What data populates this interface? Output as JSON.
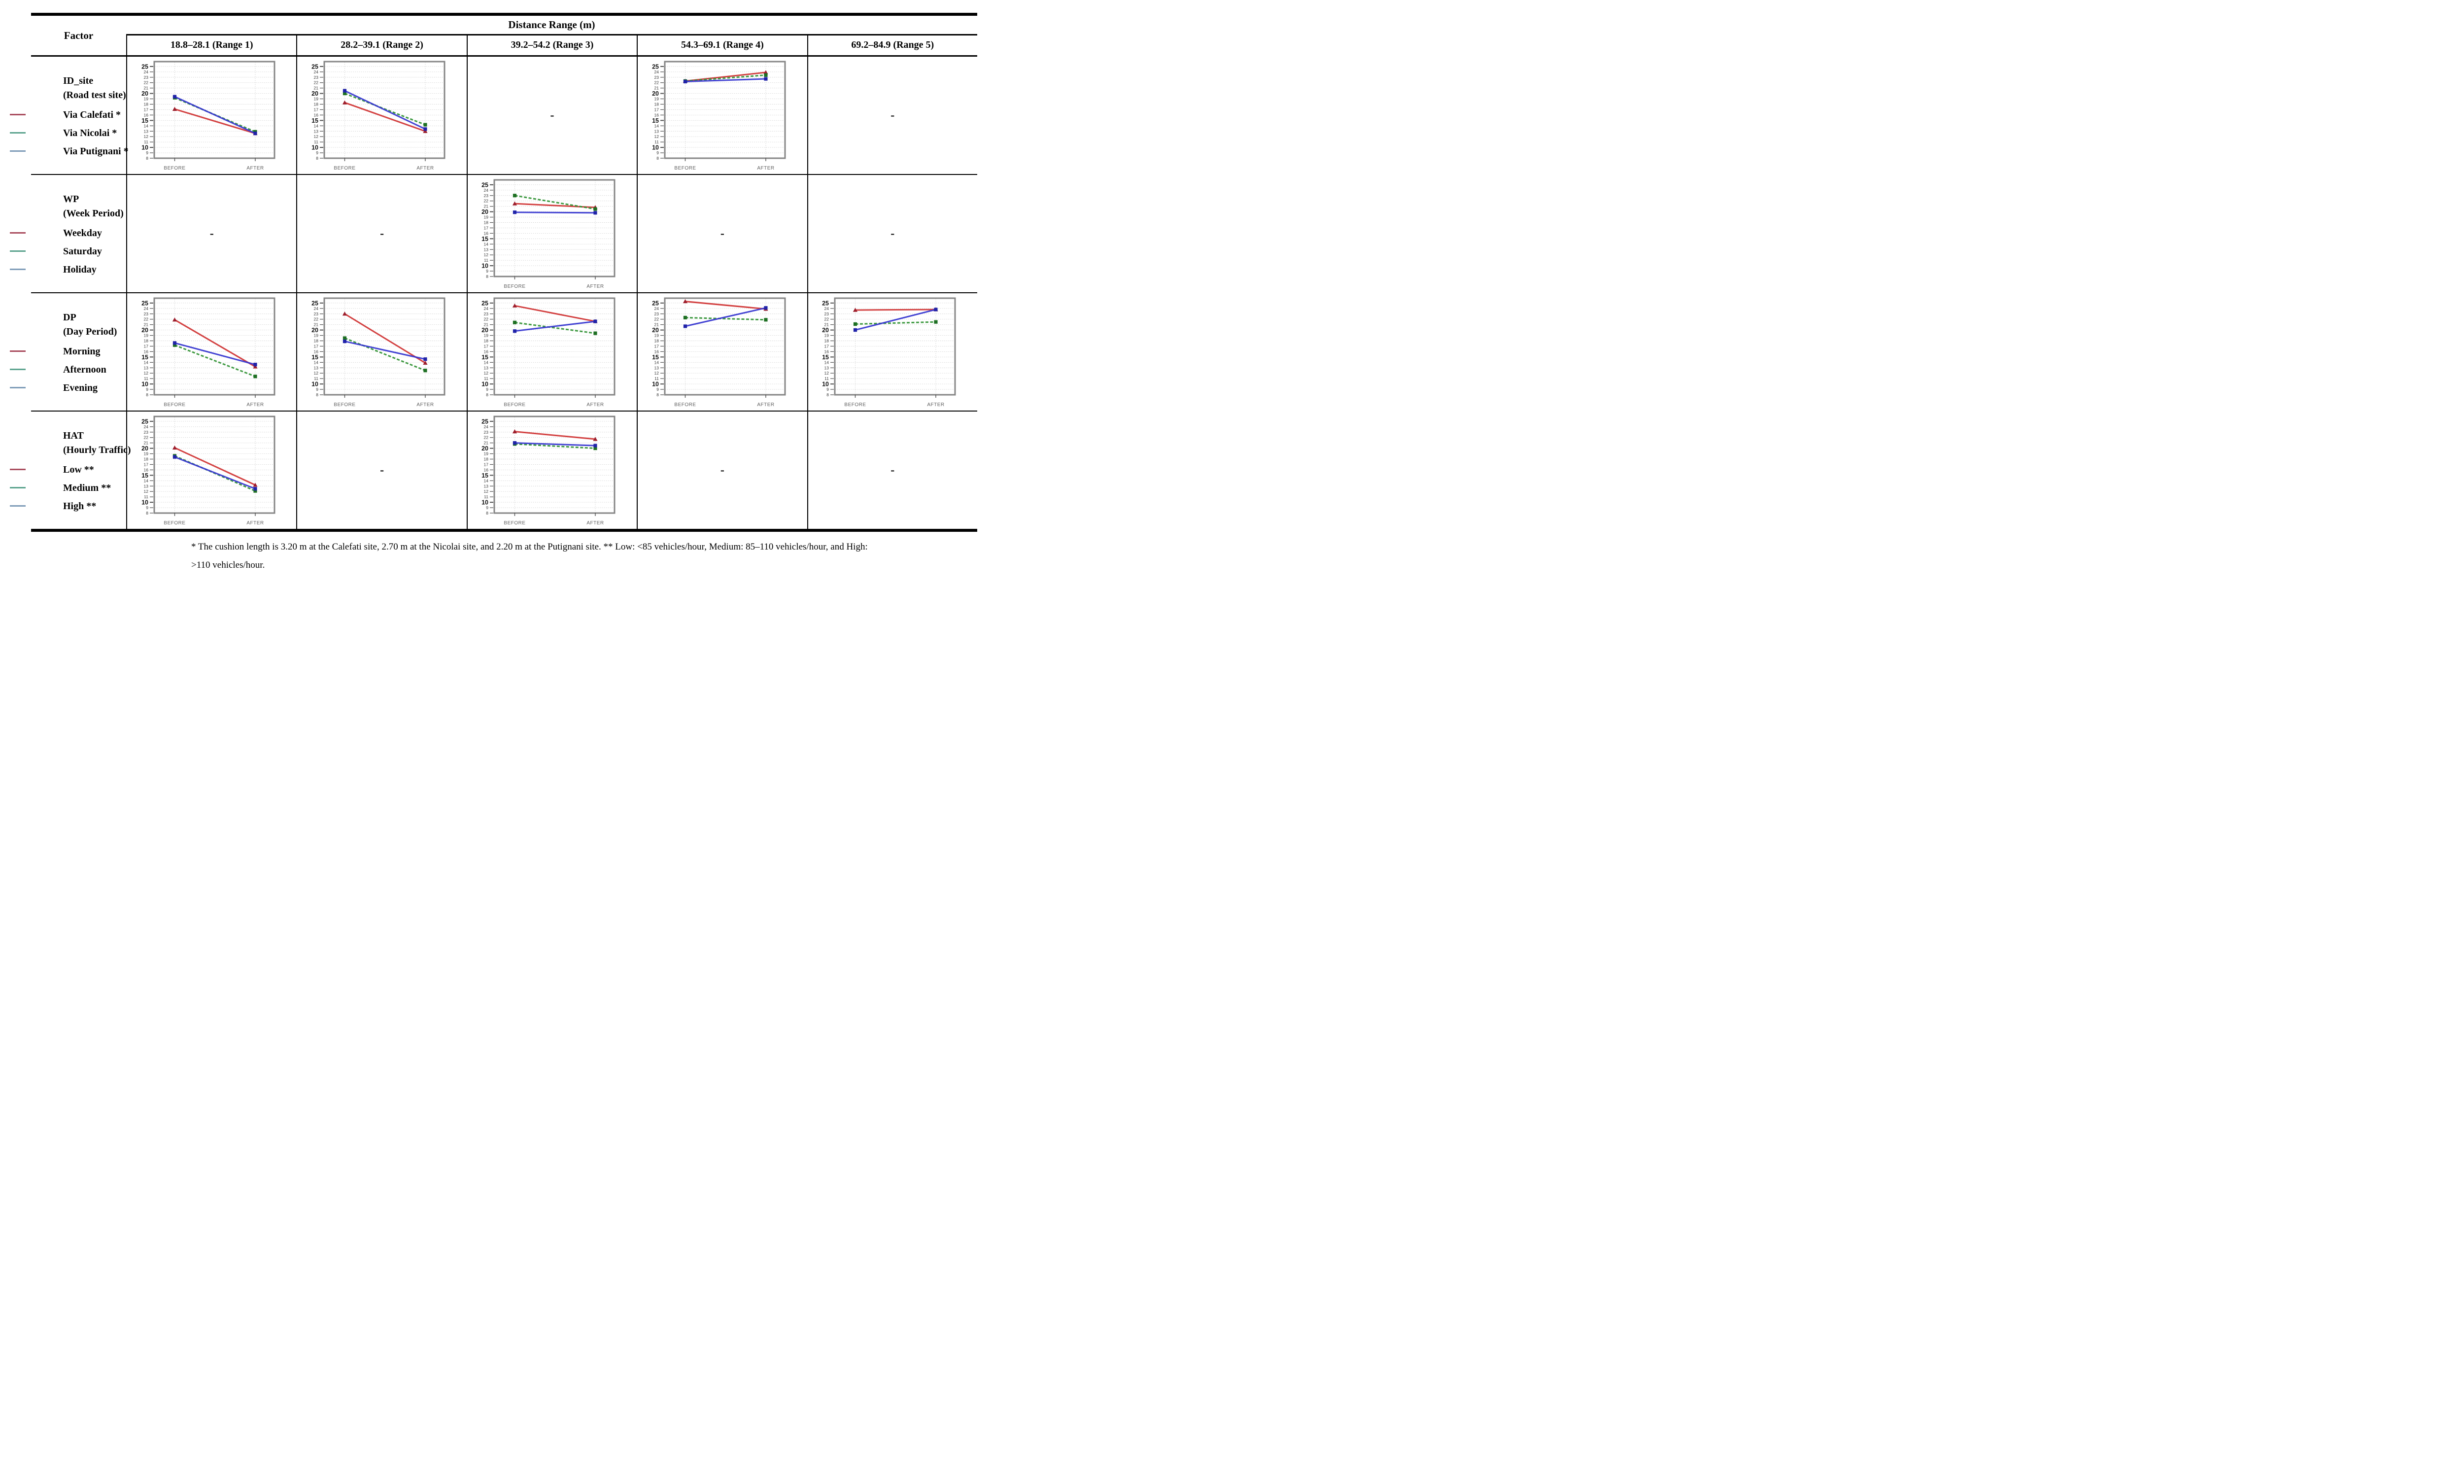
{
  "table": {
    "header": {
      "factor_label": "Factor",
      "distance_label": "Distance Range (m)",
      "columns": [
        "18.8–28.1 (Range 1)",
        "28.2–39.1 (Range 2)",
        "39.2–54.2 (Range 3)",
        "54.3–69.1 (Range 4)",
        "69.2–84.9 (Range 5)"
      ]
    },
    "x_categories": [
      "BEFORE",
      "AFTER"
    ],
    "y_axis": {
      "min": 8,
      "max": 25.9,
      "tick_start": 8,
      "tick_end": 25,
      "major_ticks": [
        10,
        15,
        20,
        25
      ]
    },
    "series_styles": {
      "red": {
        "line": "#cf3232",
        "marker": "#9c1f2d",
        "dash": null,
        "shape": "triangle"
      },
      "green": {
        "line": "#2f9132",
        "marker": "#1e6f23",
        "dash": "6 3.5",
        "shape": "square"
      },
      "blue": {
        "line": "#3434cf",
        "marker": "#2023a8",
        "dash": null,
        "shape": "square"
      }
    },
    "legend_swatch_colors": {
      "red": "#a84a5c",
      "green": "#5ba38d",
      "blue": "#7e9cb8"
    },
    "grid_color": "#c9c9c9",
    "frame_color": "#858585",
    "axis_text_color": "#3a3a3a",
    "x_label_color": "#5f5f5f",
    "rows": [
      {
        "factor_code": "ID_site",
        "factor_desc": "(Road test site)",
        "legend": [
          {
            "label": "Via Calefati *",
            "color": "red"
          },
          {
            "label": "Via Nicolai *",
            "color": "green"
          },
          {
            "label": "Via Putignani *",
            "color": "blue"
          }
        ],
        "cells": [
          {
            "type": "chart",
            "chart_index": 0
          },
          {
            "type": "chart",
            "chart_index": 1
          },
          {
            "type": "dash",
            "text": "-"
          },
          {
            "type": "chart",
            "chart_index": 2
          },
          {
            "type": "dash",
            "text": "-"
          }
        ]
      },
      {
        "factor_code": "WP",
        "factor_desc": "(Week Period)",
        "legend": [
          {
            "label": "Weekday",
            "color": "red"
          },
          {
            "label": "Saturday",
            "color": "green"
          },
          {
            "label": "Holiday",
            "color": "blue"
          }
        ],
        "cells": [
          {
            "type": "dash",
            "text": "-"
          },
          {
            "type": "dash",
            "text": "-"
          },
          {
            "type": "chart",
            "chart_index": 3
          },
          {
            "type": "dash",
            "text": "-"
          },
          {
            "type": "dash",
            "text": "-"
          }
        ]
      },
      {
        "factor_code": "DP",
        "factor_desc": "(Day Period)",
        "legend": [
          {
            "label": "Morning",
            "color": "red"
          },
          {
            "label": "Afternoon",
            "color": "green"
          },
          {
            "label": "Evening",
            "color": "blue"
          }
        ],
        "cells": [
          {
            "type": "chart",
            "chart_index": 4
          },
          {
            "type": "chart",
            "chart_index": 5
          },
          {
            "type": "chart",
            "chart_index": 6
          },
          {
            "type": "chart",
            "chart_index": 7
          },
          {
            "type": "chart",
            "chart_index": 8
          }
        ]
      },
      {
        "factor_code": "HAT",
        "factor_desc": "(Hourly Traffic)",
        "legend": [
          {
            "label": "Low **",
            "color": "red"
          },
          {
            "label": "Medium **",
            "color": "green"
          },
          {
            "label": "High **",
            "color": "blue"
          }
        ],
        "cells": [
          {
            "type": "chart",
            "chart_index": 9
          },
          {
            "type": "dash",
            "text": "-"
          },
          {
            "type": "chart",
            "chart_index": 10
          },
          {
            "type": "dash",
            "text": "-"
          },
          {
            "type": "dash",
            "text": "-"
          }
        ]
      }
    ]
  },
  "chart_data": [
    {
      "type": "line",
      "factor": "ID_site",
      "range": "18.8–28.1 (Range 1)",
      "x": [
        "BEFORE",
        "AFTER"
      ],
      "ylim": [
        8,
        25.9
      ],
      "series": [
        {
          "name": "Via Calefati *",
          "color": "red",
          "values": [
            17.1,
            12.6
          ]
        },
        {
          "name": "Via Nicolai *",
          "color": "green",
          "values": [
            19.2,
            12.9
          ]
        },
        {
          "name": "Via Putignani *",
          "color": "blue",
          "values": [
            19.4,
            12.6
          ]
        }
      ]
    },
    {
      "type": "line",
      "factor": "ID_site",
      "range": "28.2–39.1 (Range 2)",
      "x": [
        "BEFORE",
        "AFTER"
      ],
      "ylim": [
        8,
        25.9
      ],
      "series": [
        {
          "name": "Via Calefati *",
          "color": "red",
          "values": [
            18.3,
            13.0
          ]
        },
        {
          "name": "Via Nicolai *",
          "color": "green",
          "values": [
            20.0,
            14.2
          ]
        },
        {
          "name": "Via Putignani *",
          "color": "blue",
          "values": [
            20.5,
            13.4
          ]
        }
      ]
    },
    {
      "type": "line",
      "factor": "ID_site",
      "range": "54.3–69.1 (Range 4)",
      "x": [
        "BEFORE",
        "AFTER"
      ],
      "ylim": [
        8,
        25.9
      ],
      "series": [
        {
          "name": "Via Calefati *",
          "color": "red",
          "values": [
            22.3,
            23.9
          ]
        },
        {
          "name": "Via Nicolai *",
          "color": "green",
          "values": [
            22.3,
            23.4
          ]
        },
        {
          "name": "Via Putignani *",
          "color": "blue",
          "values": [
            22.2,
            22.7
          ]
        }
      ]
    },
    {
      "type": "line",
      "factor": "WP",
      "range": "39.2–54.2 (Range 3)",
      "x": [
        "BEFORE",
        "AFTER"
      ],
      "ylim": [
        8,
        25.9
      ],
      "series": [
        {
          "name": "Weekday",
          "color": "red",
          "values": [
            21.5,
            20.8
          ]
        },
        {
          "name": "Saturday",
          "color": "green",
          "values": [
            23.0,
            20.5
          ]
        },
        {
          "name": "Holiday",
          "color": "blue",
          "values": [
            19.9,
            19.8
          ]
        }
      ]
    },
    {
      "type": "line",
      "factor": "DP",
      "range": "18.8–28.1 (Range 1)",
      "x": [
        "BEFORE",
        "AFTER"
      ],
      "ylim": [
        8,
        25.9
      ],
      "series": [
        {
          "name": "Morning",
          "color": "red",
          "values": [
            21.9,
            13.2
          ]
        },
        {
          "name": "Afternoon",
          "color": "green",
          "values": [
            17.2,
            11.4
          ]
        },
        {
          "name": "Evening",
          "color": "blue",
          "values": [
            17.6,
            13.6
          ]
        }
      ]
    },
    {
      "type": "line",
      "factor": "DP",
      "range": "28.2–39.1 (Range 2)",
      "x": [
        "BEFORE",
        "AFTER"
      ],
      "ylim": [
        8,
        25.9
      ],
      "series": [
        {
          "name": "Morning",
          "color": "red",
          "values": [
            23.0,
            13.9
          ]
        },
        {
          "name": "Afternoon",
          "color": "green",
          "values": [
            18.5,
            12.5
          ]
        },
        {
          "name": "Evening",
          "color": "blue",
          "values": [
            17.9,
            14.6
          ]
        }
      ]
    },
    {
      "type": "line",
      "factor": "DP",
      "range": "39.2–54.2 (Range 3)",
      "x": [
        "BEFORE",
        "AFTER"
      ],
      "ylim": [
        8,
        25.9
      ],
      "series": [
        {
          "name": "Morning",
          "color": "red",
          "values": [
            24.5,
            21.6
          ]
        },
        {
          "name": "Afternoon",
          "color": "green",
          "values": [
            21.4,
            19.4
          ]
        },
        {
          "name": "Evening",
          "color": "blue",
          "values": [
            19.8,
            21.6
          ]
        }
      ]
    },
    {
      "type": "line",
      "factor": "DP",
      "range": "54.3–69.1 (Range 4)",
      "x": [
        "BEFORE",
        "AFTER"
      ],
      "ylim": [
        8,
        25.9
      ],
      "series": [
        {
          "name": "Morning",
          "color": "red",
          "values": [
            25.3,
            23.9
          ]
        },
        {
          "name": "Afternoon",
          "color": "green",
          "values": [
            22.3,
            21.9
          ]
        },
        {
          "name": "Evening",
          "color": "blue",
          "values": [
            20.7,
            24.1
          ]
        }
      ]
    },
    {
      "type": "line",
      "factor": "DP",
      "range": "69.2–84.9 (Range 5)",
      "x": [
        "BEFORE",
        "AFTER"
      ],
      "ylim": [
        8,
        25.9
      ],
      "series": [
        {
          "name": "Morning",
          "color": "red",
          "values": [
            23.7,
            23.8
          ]
        },
        {
          "name": "Afternoon",
          "color": "green",
          "values": [
            21.1,
            21.5
          ]
        },
        {
          "name": "Evening",
          "color": "blue",
          "values": [
            20.0,
            23.8
          ]
        }
      ]
    },
    {
      "type": "line",
      "factor": "HAT",
      "range": "18.8–28.1 (Range 1)",
      "x": [
        "BEFORE",
        "AFTER"
      ],
      "ylim": [
        8,
        25.9
      ],
      "series": [
        {
          "name": "Low **",
          "color": "red",
          "values": [
            20.1,
            13.2
          ]
        },
        {
          "name": "Medium **",
          "color": "green",
          "values": [
            18.6,
            12.1
          ]
        },
        {
          "name": "High **",
          "color": "blue",
          "values": [
            18.4,
            12.5
          ]
        }
      ]
    },
    {
      "type": "line",
      "factor": "HAT",
      "range": "39.2–54.2 (Range 3)",
      "x": [
        "BEFORE",
        "AFTER"
      ],
      "ylim": [
        8,
        25.9
      ],
      "series": [
        {
          "name": "Low **",
          "color": "red",
          "values": [
            23.1,
            21.7
          ]
        },
        {
          "name": "Medium **",
          "color": "green",
          "values": [
            20.8,
            20.0
          ]
        },
        {
          "name": "High **",
          "color": "blue",
          "values": [
            21.0,
            20.5
          ]
        }
      ]
    }
  ],
  "footnote": {
    "text": "* The cushion length is 3.20 m at the Calefati site, 2.70 m at the Nicolai site, and 2.20 m at the Putignani site. ** Low: <85 vehicles/hour, Medium: 85–110 vehicles/hour, and High: >110 vehicles/hour."
  }
}
